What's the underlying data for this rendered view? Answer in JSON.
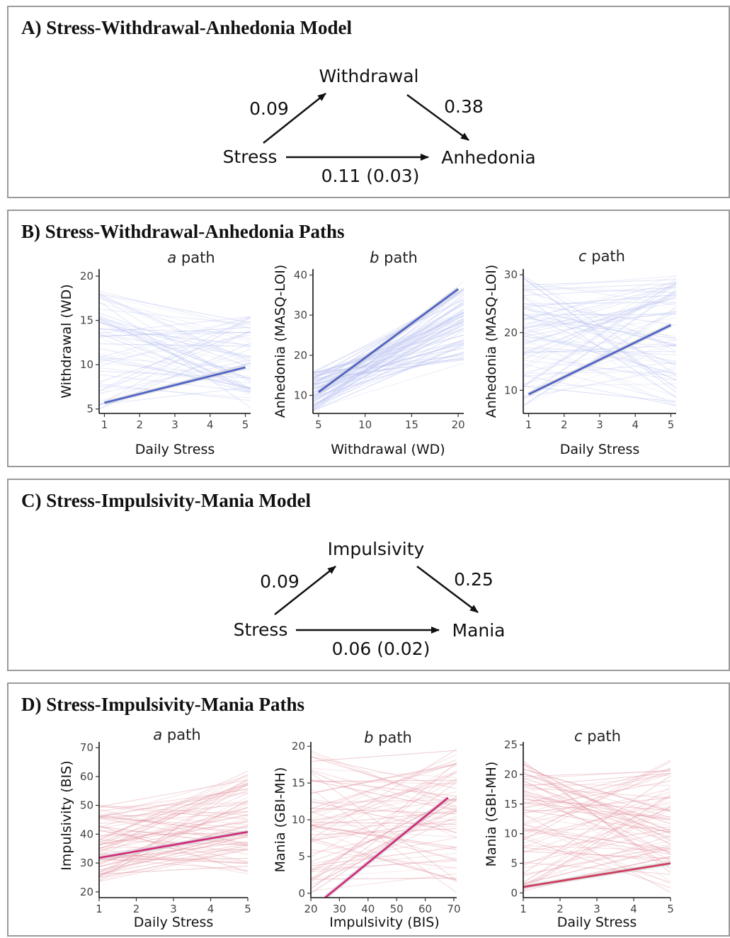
{
  "panels": {
    "a": {
      "title": "A) Stress-Withdrawal-Anhedonia Model",
      "nodes": {
        "predictor": "Stress",
        "mediator": "Withdrawal",
        "outcome": "Anhedonia"
      },
      "coefs": {
        "a": "0.09",
        "b": "0.38",
        "c": "0.11 (0.03)"
      }
    },
    "b": {
      "title": "B) Stress-Withdrawal-Anhedonia Paths"
    },
    "c": {
      "title": "C) Stress-Impulsivity-Mania Model",
      "nodes": {
        "predictor": "Stress",
        "mediator": "Impulsivity",
        "outcome": "Mania"
      },
      "coefs": {
        "a": "0.09",
        "b": "0.25",
        "c": "0.06 (0.02)"
      }
    },
    "d": {
      "title": "D) Stress-Impulsivity-Mania Paths"
    }
  },
  "colors": {
    "blue_main": "#4a5fc9",
    "blue_bg": "#b8c1f0",
    "pink_main": "#d1277a",
    "red_bg": "#e0909c",
    "red_main": "#d0375c"
  },
  "chart_data": [
    {
      "id": "b1",
      "type": "line",
      "title_letter": "a",
      "title_rest": " path",
      "xlabel": "Daily Stress",
      "ylabel": "Withdrawal (WD)",
      "xlim": [
        0.85,
        5.15
      ],
      "ylim": [
        4.5,
        20.8
      ],
      "xticks": [
        1,
        2,
        3,
        4,
        5
      ],
      "yticks": [
        5,
        10,
        15,
        20
      ],
      "fit": {
        "x": [
          1,
          5
        ],
        "y": [
          5.7,
          9.7
        ]
      },
      "individual_lines": {
        "count": 60,
        "y_at_x1": [
          5,
          18.5
        ],
        "y_at_x5": [
          5,
          15.5
        ]
      }
    },
    {
      "id": "b2",
      "type": "line",
      "title_letter": "b",
      "title_rest": " path",
      "xlabel": "Withdrawal (WD)",
      "ylabel": "Anhedonia (MASQ-LOI)",
      "xlim": [
        4.4,
        20.6
      ],
      "ylim": [
        5.5,
        41.5
      ],
      "xticks": [
        5,
        10,
        15,
        20
      ],
      "yticks": [
        10,
        20,
        30,
        40
      ],
      "fit": {
        "x": [
          5,
          20
        ],
        "y": [
          10.8,
          36.5
        ]
      },
      "individual_lines": {
        "count": 80,
        "y_at_x1": [
          6,
          16
        ],
        "y_at_x5": [
          18,
          40
        ]
      }
    },
    {
      "id": "b3",
      "type": "line",
      "title_letter": "c",
      "title_rest": " path",
      "xlabel": "Daily Stress",
      "ylabel": "Anhedonia (MASQ-LOI)",
      "xlim": [
        0.85,
        5.15
      ],
      "ylim": [
        6,
        31
      ],
      "xticks": [
        1,
        2,
        3,
        4,
        5
      ],
      "yticks": [
        10,
        20,
        30
      ],
      "fit": {
        "x": [
          1,
          5
        ],
        "y": [
          9.3,
          21.3
        ]
      },
      "individual_lines": {
        "count": 80,
        "y_at_x1": [
          7,
          30
        ],
        "y_at_x5": [
          7,
          30
        ]
      }
    },
    {
      "id": "d1",
      "type": "line",
      "title_letter": "a",
      "title_rest": " path",
      "xlabel": "Daily Stress",
      "ylabel": "Impulsivity (BIS)",
      "xlim": [
        1,
        5
      ],
      "ylim": [
        18,
        72
      ],
      "xticks": [
        1,
        2,
        3,
        4,
        5
      ],
      "yticks": [
        20,
        30,
        40,
        50,
        60,
        70
      ],
      "fit": {
        "x": [
          1,
          5
        ],
        "y": [
          31.8,
          40.8
        ]
      },
      "individual_lines": {
        "count": 80,
        "y_at_x1": [
          23,
          50
        ],
        "y_at_x5": [
          26,
          62
        ]
      }
    },
    {
      "id": "d2",
      "type": "line",
      "title_letter": "b",
      "title_rest": " path",
      "xlabel": "Impulsivity (BIS)",
      "ylabel": "Mania (GBI-MH)",
      "xlim": [
        20,
        71
      ],
      "ylim": [
        -0.6,
        20.6
      ],
      "xticks": [
        20,
        30,
        40,
        50,
        60,
        70
      ],
      "yticks": [
        0,
        5,
        10,
        15,
        20
      ],
      "fit": {
        "x": [
          25,
          68
        ],
        "y": [
          -0.6,
          13
        ]
      },
      "individual_lines": {
        "count": 70,
        "y_at_x1": [
          0,
          20
        ],
        "y_at_x5": [
          0,
          20
        ]
      }
    },
    {
      "id": "d3",
      "type": "line",
      "title_letter": "c",
      "title_rest": " path",
      "xlabel": "Daily Stress",
      "ylabel": "Mania (GBI-MH)",
      "xlim": [
        1,
        5
      ],
      "ylim": [
        -0.8,
        25.5
      ],
      "xticks": [
        1,
        2,
        3,
        4,
        5
      ],
      "yticks": [
        0,
        5,
        10,
        15,
        20,
        25
      ],
      "fit": {
        "x": [
          1,
          5
        ],
        "y": [
          1,
          5
        ]
      },
      "individual_lines": {
        "count": 80,
        "y_at_x1": [
          0,
          22.5
        ],
        "y_at_x5": [
          0,
          22.5
        ]
      }
    }
  ]
}
